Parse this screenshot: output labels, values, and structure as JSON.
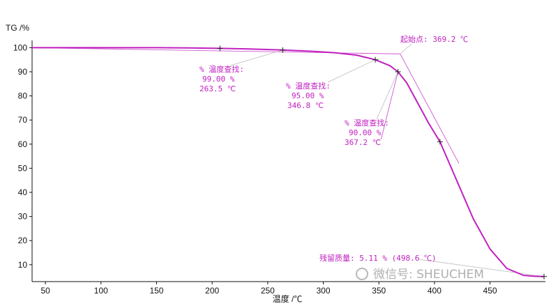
{
  "chart_data": {
    "type": "line",
    "ylabel": "TG /%",
    "xlabel": "温度 /℃",
    "xlim": [
      38,
      498.6
    ],
    "ylim": [
      3,
      103
    ],
    "xticks": [
      50,
      100,
      150,
      200,
      250,
      300,
      350,
      400,
      450
    ],
    "yticks": [
      10,
      20,
      30,
      40,
      50,
      60,
      70,
      80,
      90,
      100
    ],
    "grid": false,
    "series": [
      {
        "color": "#c020c0",
        "x": [
          38,
          100,
          150,
          180,
          207,
          230,
          263.5,
          290,
          310,
          330,
          346.8,
          360,
          367.2,
          375,
          385,
          395,
          405,
          420,
          435,
          450,
          465,
          480,
          490,
          498.6
        ],
        "y": [
          100,
          100,
          100,
          99.9,
          99.7,
          99.5,
          99.0,
          98.5,
          97.9,
          96.9,
          95.0,
          92.5,
          90.0,
          85.5,
          77.0,
          68.5,
          61.0,
          45.0,
          29.0,
          16.5,
          8.5,
          5.6,
          5.2,
          5.11
        ]
      }
    ],
    "markers": [
      {
        "x": 207,
        "y": 99.7
      },
      {
        "x": 263.5,
        "y": 99.0
      },
      {
        "x": 346.8,
        "y": 95.0
      },
      {
        "x": 367.2,
        "y": 90.0
      },
      {
        "x": 405,
        "y": 61.0
      },
      {
        "x": 498.6,
        "y": 5.11
      }
    ],
    "onset_construction": {
      "baseline": {
        "x": [
          38,
          369.2
        ],
        "y": [
          100,
          97.4
        ]
      },
      "tangent": {
        "x": [
          369.2,
          422
        ],
        "y": [
          97.4,
          52
        ]
      },
      "guide_from_90": {
        "x": [
          367.2,
          352
        ],
        "y": [
          90.0,
          62
        ]
      }
    },
    "annotations": [
      {
        "lines": [
          "% 温度查找:",
          "99.00 %",
          "263.5 ℃"
        ]
      },
      {
        "lines": [
          "% 温度查找:",
          "95.00 %",
          "346.8 ℃"
        ]
      },
      {
        "lines": [
          "% 温度查找:",
          "90.00 %",
          "367.2 ℃"
        ]
      },
      {
        "lines": [
          "起始点: 369.2 ℃"
        ]
      },
      {
        "lines": [
          "残留质量: 5.11 % (498.6 ℃)"
        ]
      }
    ],
    "watermark": "微信号: SHEUCHEM"
  },
  "colors": {
    "curve": "#c020c0",
    "axis": "#111111",
    "annotation": "#c020c0",
    "watermark": "#b0b0b0"
  }
}
